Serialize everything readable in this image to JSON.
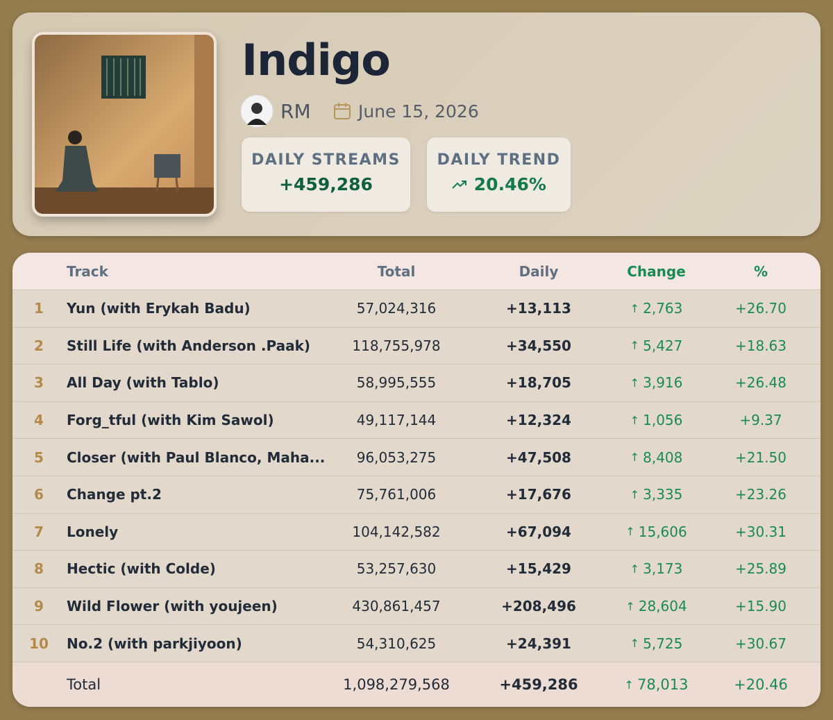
{
  "header": {
    "title": "Indigo",
    "artist": "RM",
    "date": "June 15, 2026",
    "stats": [
      {
        "label": "DAILY STREAMS",
        "value": "+459,286"
      },
      {
        "label": "DAILY TREND",
        "value": "20.46%"
      }
    ]
  },
  "table": {
    "columns": [
      "Track",
      "Total",
      "Daily",
      "Change",
      "%"
    ],
    "rows": [
      [
        "1",
        "Yun (with Erykah Badu)",
        "57,024,316",
        "+13,113",
        "2,763",
        "+26.70"
      ],
      [
        "2",
        "Still Life (with Anderson .Paak)",
        "118,755,978",
        "+34,550",
        "5,427",
        "+18.63"
      ],
      [
        "3",
        "All Day (with Tablo)",
        "58,995,555",
        "+18,705",
        "3,916",
        "+26.48"
      ],
      [
        "4",
        "Forg_tful (with Kim Sawol)",
        "49,117,144",
        "+12,324",
        "1,056",
        "+9.37"
      ],
      [
        "5",
        "Closer (with Paul Blanco, Maha...",
        "96,053,275",
        "+47,508",
        "8,408",
        "+21.50"
      ],
      [
        "6",
        "Change pt.2",
        "75,761,006",
        "+17,676",
        "3,335",
        "+23.26"
      ],
      [
        "7",
        "Lonely",
        "104,142,582",
        "+67,094",
        "15,606",
        "+30.31"
      ],
      [
        "8",
        "Hectic (with Colde)",
        "53,257,630",
        "+15,429",
        "3,173",
        "+25.89"
      ],
      [
        "9",
        "Wild Flower (with youjeen)",
        "430,861,457",
        "+208,496",
        "28,604",
        "+15.90"
      ],
      [
        "10",
        "No.2 (with parkjiyoon)",
        "54,310,625",
        "+24,391",
        "5,725",
        "+30.67"
      ]
    ],
    "total": [
      "Total",
      "1,098,279,568",
      "+459,286",
      "78,013",
      "+20.46"
    ]
  }
}
